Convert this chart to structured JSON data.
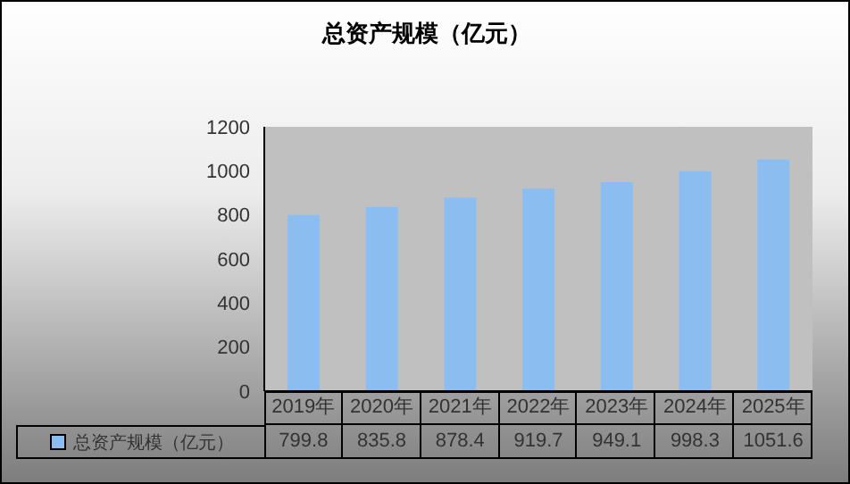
{
  "chart_data": {
    "type": "bar",
    "title": "总资产规模（亿元）",
    "categories": [
      "2019年",
      "2020年",
      "2021年",
      "2022年",
      "2023年",
      "2024年",
      "2025年"
    ],
    "series": [
      {
        "name": "总资产规模（亿元）",
        "color": "#8cbdf0",
        "values": [
          799.8,
          835.8,
          878.4,
          919.7,
          949.1,
          998.3,
          1051.6
        ]
      }
    ],
    "ylim": [
      0,
      1200
    ],
    "yticks": [
      0,
      200,
      400,
      600,
      800,
      1000,
      1200
    ],
    "grid": false,
    "legend": "bottom",
    "data_labels": true
  }
}
